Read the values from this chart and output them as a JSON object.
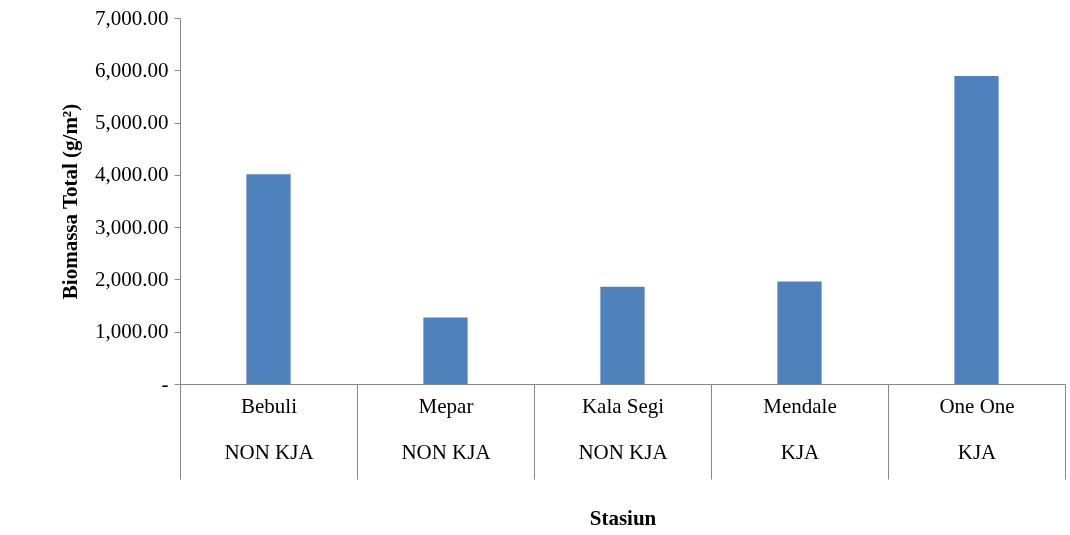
{
  "chart_data": {
    "type": "bar",
    "categories": [
      "Bebuli\nNON KJA",
      "Mepar\nNON KJA",
      "Kala Segi\nNON KJA",
      "Mendale\nKJA",
      "One One\nKJA"
    ],
    "values": [
      4010,
      1270,
      1860,
      1960,
      5890
    ],
    "color": "#4f81bd",
    "xlabel": "Stasiun",
    "ylabel": "Biomassa Total (g/m²)",
    "ylim": [
      0,
      7000
    ],
    "yticks": [
      {
        "value": 0,
        "label": "-"
      },
      {
        "value": 1000,
        "label": "1,000.00"
      },
      {
        "value": 2000,
        "label": "2,000.00"
      },
      {
        "value": 3000,
        "label": "3,000.00"
      },
      {
        "value": 4000,
        "label": "4,000.00"
      },
      {
        "value": 5000,
        "label": "5,000.00"
      },
      {
        "value": 6000,
        "label": "6,000.00"
      },
      {
        "value": 7000,
        "label": "7,000.00"
      }
    ],
    "grid": false
  }
}
